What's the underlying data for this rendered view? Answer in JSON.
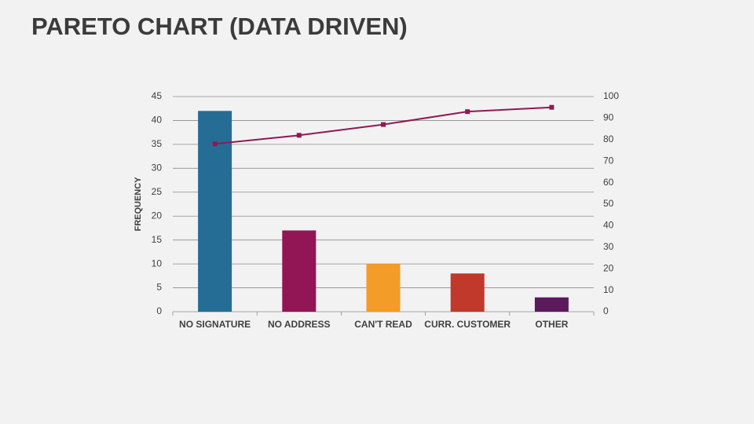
{
  "chart_data": {
    "type": "pareto",
    "title": "PARETO CHART (DATA DRIVEN)",
    "ylabel": "FREQUENCY",
    "categories": [
      "NO SIGNATURE",
      "NO ADDRESS",
      "CAN'T READ",
      "CURR. CUSTOMER",
      "OTHER"
    ],
    "series": [
      {
        "type": "bar",
        "colors": [
          "#256d94",
          "#921655",
          "#f39c27",
          "#c0392b",
          "#5b1a5c"
        ],
        "values": [
          42,
          17,
          10,
          8,
          3
        ]
      },
      {
        "type": "line",
        "axis": "y2",
        "color": "#8e1a55",
        "values": [
          78,
          82,
          87,
          93,
          95
        ]
      }
    ],
    "ylim": [
      0,
      45
    ],
    "yticks": [
      0,
      5,
      10,
      15,
      20,
      25,
      30,
      35,
      40,
      45
    ],
    "y2lim": [
      0,
      100
    ],
    "y2ticks": [
      0,
      10,
      20,
      30,
      40,
      50,
      60,
      70,
      80,
      90,
      100
    ],
    "grid": true
  }
}
